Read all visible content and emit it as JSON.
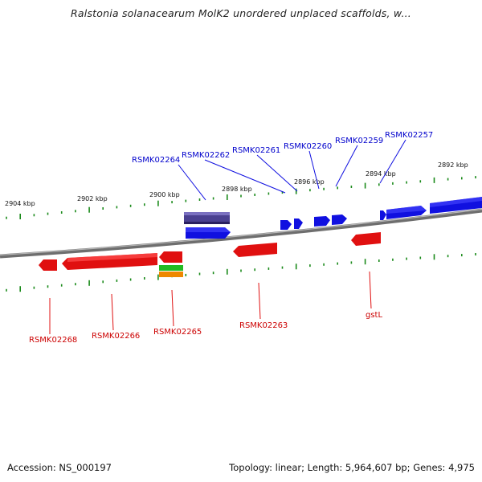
{
  "title": "Ralstonia solanacearum MolK2 unordered unplaced scaffolds, w...",
  "footer": {
    "accession": "Accession: NS_000197",
    "summary": "Topology: linear; Length: 5,964,607 bp; Genes: 4,975"
  },
  "colors": {
    "forward_gene": "#1010e0",
    "reverse_gene": "#e01010",
    "forward_label": "#0000cc",
    "reverse_label": "#cc0000",
    "operon": "#4a4090",
    "green_feature": "#22bb22",
    "orange_feature": "#ee8800",
    "tick": "#1a8a1a",
    "backbone": "#8a8a8a"
  },
  "scale_ticks": [
    "2904 kbp",
    "2902 kbp",
    "2900 kbp",
    "2898 kbp",
    "2896 kbp",
    "2894 kbp",
    "2892 kbp"
  ],
  "forward_labels": [
    "RSMK02264",
    "RSMK02262",
    "RSMK02261",
    "RSMK02260",
    "RSMK02259",
    "RSMK02257"
  ],
  "reverse_labels": [
    "RSMK02268",
    "RSMK02266",
    "RSMK02265",
    "RSMK02263",
    "gstL"
  ]
}
